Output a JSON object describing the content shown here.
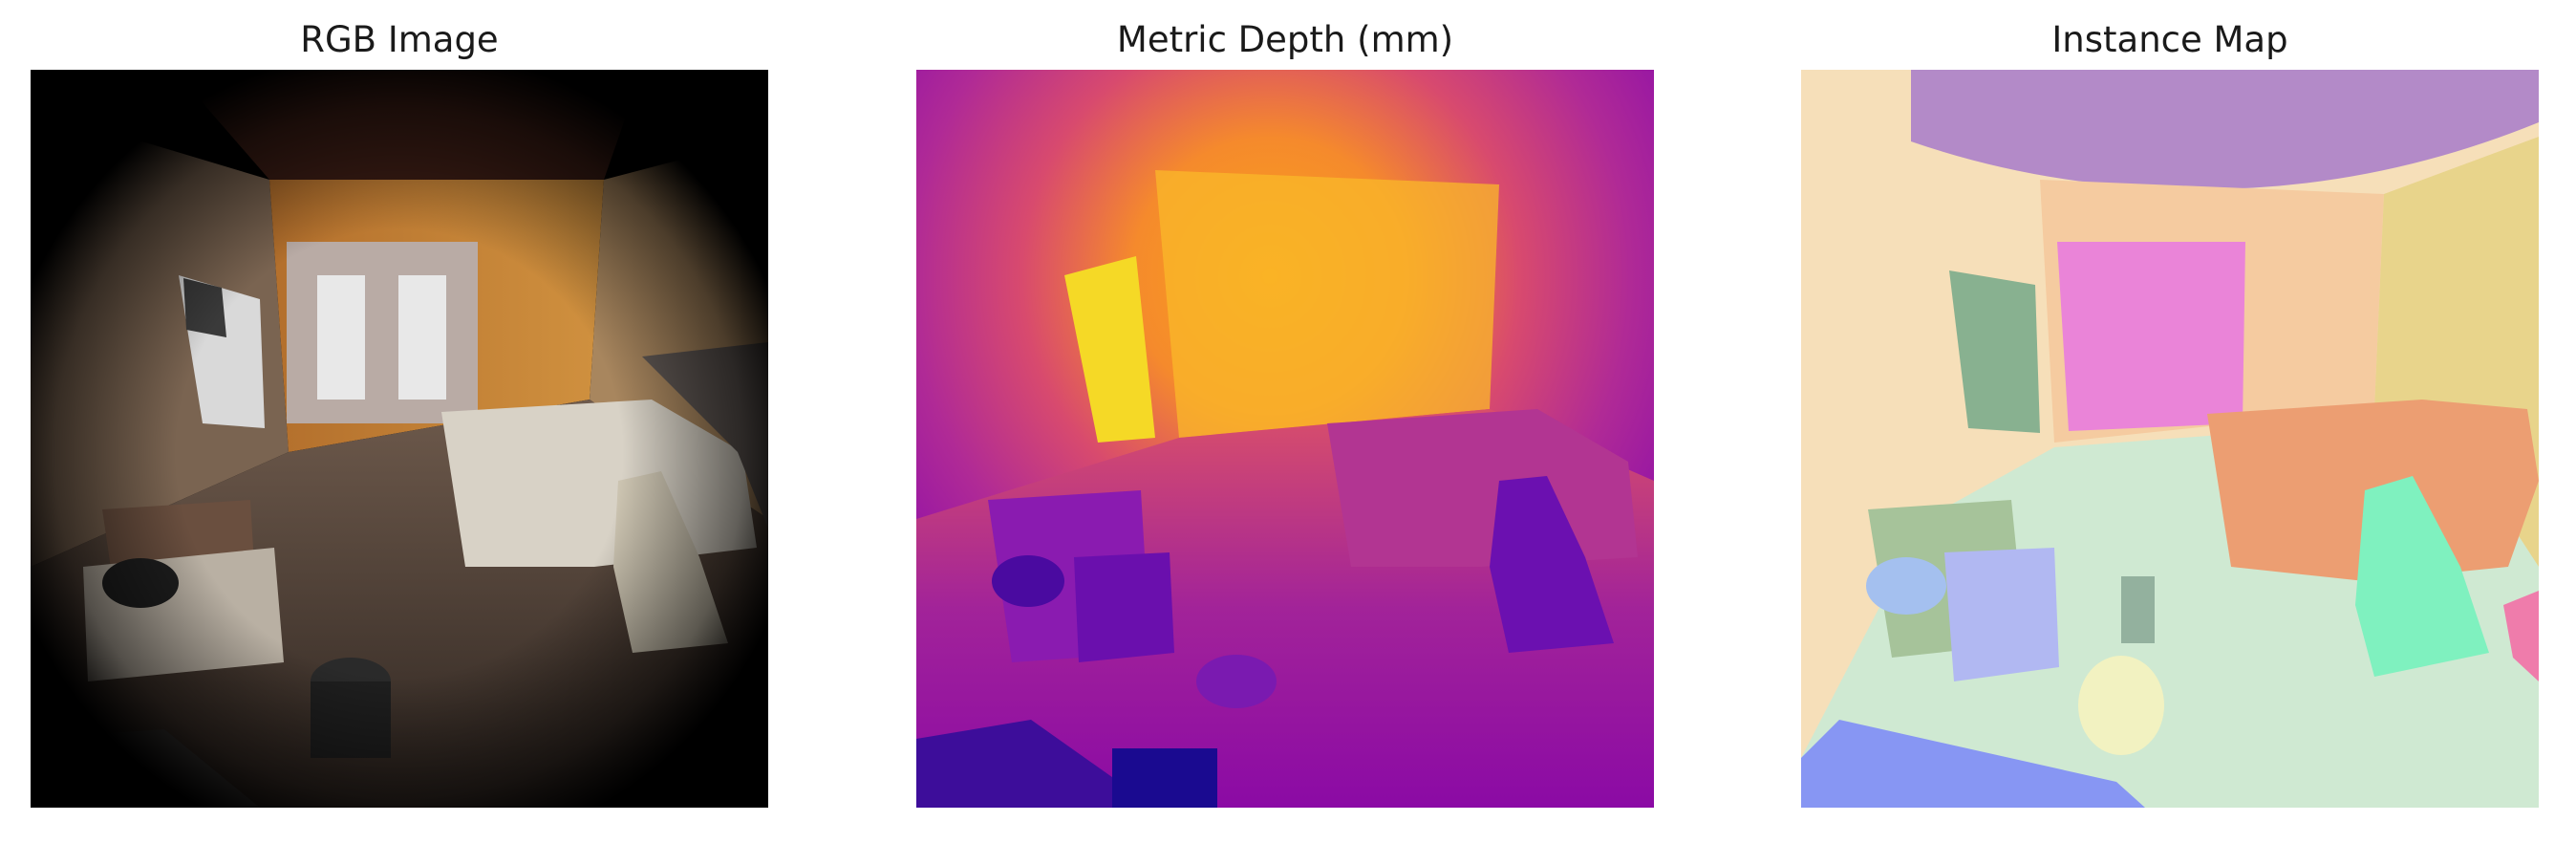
{
  "figure": {
    "panels": [
      {
        "id": "rgb",
        "title": "RGB Image"
      },
      {
        "id": "depth",
        "title": "Metric Depth (mm)"
      },
      {
        "id": "instance",
        "title": "Instance Map"
      }
    ]
  },
  "colors": {
    "background": "#ffffff",
    "rgb_wall": "#c8883a",
    "rgb_floor": "#5b4a40",
    "depth_near": "#0d0887",
    "depth_mid": "#cc4778",
    "depth_far": "#f0f921",
    "instance_wall_left": "#f6dfb9",
    "instance_ceiling": "#b38ac8",
    "instance_back_wall": "#f5cba0",
    "instance_wall_right": "#e8d48b",
    "instance_window": "#ea84d8",
    "instance_door": "#88b190",
    "instance_floor": "#cfe9d2",
    "instance_bed": "#ec9e72",
    "instance_chair_right": "#7ff1bf",
    "instance_chair_left": "#b1b8f2",
    "instance_sofa": "#8796f3",
    "instance_bin": "#f2f2c1"
  }
}
